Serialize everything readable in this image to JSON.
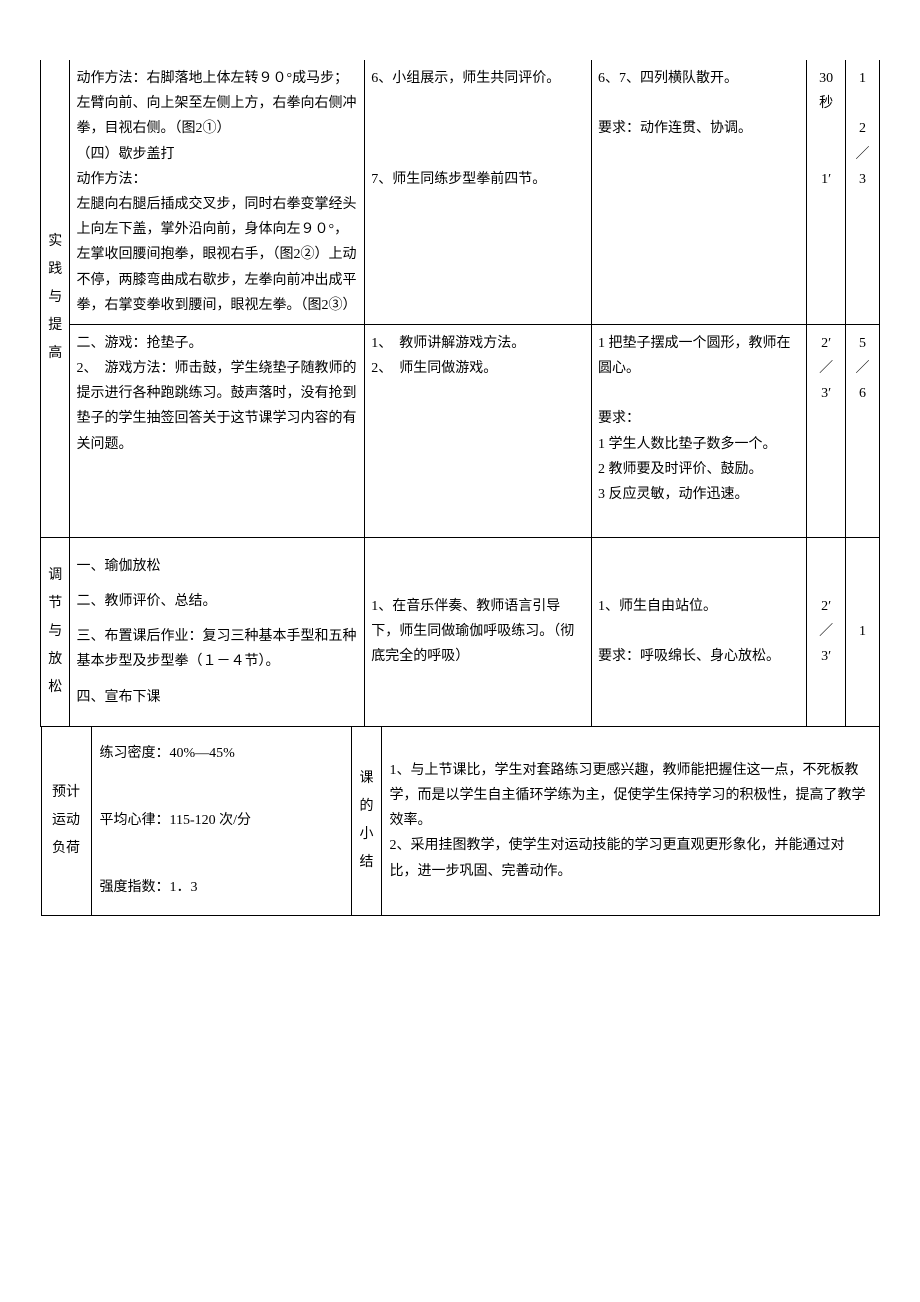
{
  "row1": {
    "phase": "实践与提高",
    "content": "动作方法：右脚落地上体左转９０°成马步；左臂向前、向上架至左侧上方，右拳向右侧冲拳，目视右侧。（图2①）\n（四）歇步盖打\n动作方法：\n左腿向右腿后插成交叉步，同时右拳变掌经头上向左下盖，掌外沿向前，身体向左９０°，左掌收回腰间抱拳，眼视右手，（图2②）上动不停，两膝弯曲成右歇步，左拳向前冲出成平拳，右掌变拳收到腰间，眼视左拳。（图2③）",
    "method": "6、小组展示，师生共同评价。\n\n\n\n7、师生同练步型拳前四节。",
    "org": "6、7、四列横队散开。\n\n要求：动作连贯、协调。",
    "time": "30\n秒\n\n\n1′",
    "times": "1\n\n2\n／\n3"
  },
  "row2": {
    "content": "二、游戏：抢垫子。\n2、　游戏方法：师击鼓，学生绕垫子随教师的提示进行各种跑跳练习。鼓声落时，没有抢到垫子的学生抽签回答关于这节课学习内容的有关问题。",
    "method": "1、　教师讲解游戏方法。\n2、　师生同做游戏。",
    "org": "1 把垫子摆成一个圆形，教师在圆心。\n\n要求：\n1 学生人数比垫子数多一个。\n2 教师要及时评价、鼓励。\n3 反应灵敏，动作迅速。",
    "time": "2′\n／\n3′",
    "times": "5\n／\n6"
  },
  "row3": {
    "phase": "调节与放松",
    "content": "一、瑜伽放松\n二、教师评价、总结。\n三、布置课后作业：复习三种基本手型和五种基本步型及步型拳（１－４节）。\n四、宣布下课",
    "method": "1、在音乐伴奏、教师语言引导下，师生同做瑜伽呼吸练习。（彻底完全的呼吸）",
    "org": "1、师生自由站位。\n\n要求：呼吸绵长、身心放松。",
    "time": "2′\n／\n3′",
    "times": "1"
  },
  "bottom": {
    "label1": "预计\n运动\n负荷",
    "val1": "练习密度：40%—45%\n\n平均心律：115-120 次/分\n\n强度指数：1．3",
    "label2": "课\n的\n小\n结",
    "val2": "1、与上节课比，学生对套路练习更感兴趣，教师能把握住这一点，不死板教学，而是以学生自主循环学练为主，促使学生保持学习的积极性，提高了教学效率。\n2、采用挂图教学，使学生对运动技能的学习更直观更形象化，并能通过对比，进一步巩固、完善动作。"
  }
}
